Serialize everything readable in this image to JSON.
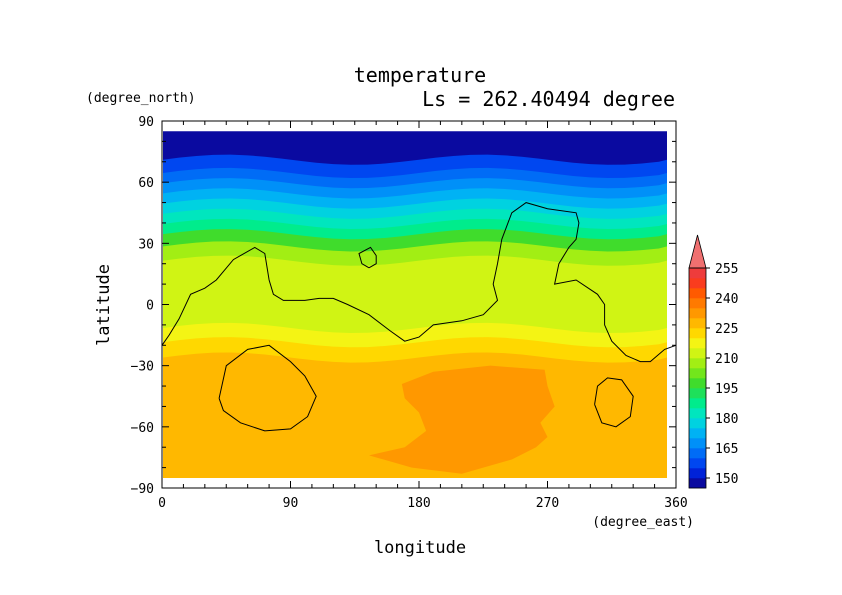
{
  "chart_data": {
    "type": "heatmap",
    "title": "temperature",
    "subtitle": "Ls = 262.40494 degree",
    "xlabel": "longitude",
    "ylabel": "latitude",
    "x_units": "(degree_east)",
    "y_units": "(degree_north)",
    "xlim": [
      0,
      360
    ],
    "ylim": [
      -90,
      90
    ],
    "x_ticks": [
      0,
      90,
      180,
      270,
      360
    ],
    "y_ticks": [
      -90,
      -60,
      -30,
      0,
      30,
      60,
      90
    ],
    "colorbar": {
      "levels": [
        145,
        150,
        155,
        160,
        165,
        170,
        175,
        180,
        185,
        190,
        195,
        200,
        205,
        210,
        215,
        220,
        225,
        230,
        235,
        240,
        245,
        250,
        255,
        260
      ],
      "tick_labels": [
        150,
        165,
        180,
        195,
        210,
        225,
        240,
        255
      ],
      "colors": [
        "#0a0aa0",
        "#0022d8",
        "#0047f0",
        "#006cf6",
        "#0090f8",
        "#00b2f4",
        "#00d2e0",
        "#00e6be",
        "#00ec8c",
        "#1ee05a",
        "#40dc2c",
        "#72e61c",
        "#a2ee14",
        "#d0f414",
        "#f4f414",
        "#ffd800",
        "#ffb800",
        "#ff9800",
        "#ff7a00",
        "#ff5a00",
        "#fa3c1e",
        "#ee3c3c",
        "#f07070"
      ]
    },
    "latitude_profile": [
      {
        "lat": 85,
        "temp": 147
      },
      {
        "lat": 75,
        "temp": 149
      },
      {
        "lat": 67,
        "temp": 156
      },
      {
        "lat": 62,
        "temp": 161
      },
      {
        "lat": 57,
        "temp": 166
      },
      {
        "lat": 52,
        "temp": 171
      },
      {
        "lat": 47,
        "temp": 176
      },
      {
        "lat": 42,
        "temp": 181
      },
      {
        "lat": 37,
        "temp": 188
      },
      {
        "lat": 32,
        "temp": 196
      },
      {
        "lat": 25,
        "temp": 205
      },
      {
        "lat": 18,
        "temp": 212
      },
      {
        "lat": 10,
        "temp": 214
      },
      {
        "lat": 0,
        "temp": 213
      },
      {
        "lat": -8,
        "temp": 214
      },
      {
        "lat": -15,
        "temp": 218
      },
      {
        "lat": -22,
        "temp": 222
      },
      {
        "lat": -30,
        "temp": 226
      },
      {
        "lat": -45,
        "temp": 227
      },
      {
        "lat": -60,
        "temp": 227
      },
      {
        "lat": -75,
        "temp": 226
      },
      {
        "lat": -85,
        "temp": 226
      }
    ],
    "warm_region": {
      "temp": 232,
      "outline": [
        [
          145,
          -74
        ],
        [
          170,
          -70
        ],
        [
          185,
          -62
        ],
        [
          180,
          -53
        ],
        [
          170,
          -46
        ],
        [
          168,
          -39
        ],
        [
          190,
          -33
        ],
        [
          230,
          -30
        ],
        [
          268,
          -32
        ],
        [
          270,
          -40
        ],
        [
          275,
          -50
        ],
        [
          265,
          -58
        ],
        [
          270,
          -65
        ],
        [
          262,
          -70
        ],
        [
          245,
          -76
        ],
        [
          210,
          -83
        ],
        [
          175,
          -80
        ]
      ]
    },
    "contours": [
      [
        [
          0,
          -20
        ],
        [
          5,
          -15
        ],
        [
          12,
          -7
        ],
        [
          20,
          5
        ],
        [
          30,
          8
        ],
        [
          38,
          12
        ],
        [
          50,
          22
        ],
        [
          65,
          28
        ],
        [
          72,
          25
        ],
        [
          75,
          12
        ],
        [
          78,
          5
        ],
        [
          85,
          2
        ],
        [
          100,
          2
        ],
        [
          110,
          3
        ],
        [
          120,
          3
        ],
        [
          130,
          0
        ],
        [
          145,
          -5
        ],
        [
          160,
          -13
        ],
        [
          170,
          -18
        ],
        [
          180,
          -16
        ],
        [
          190,
          -10
        ],
        [
          210,
          -8
        ],
        [
          225,
          -5
        ],
        [
          235,
          2
        ],
        [
          232,
          10
        ],
        [
          235,
          20
        ],
        [
          238,
          32
        ],
        [
          245,
          45
        ],
        [
          255,
          50
        ],
        [
          270,
          47
        ],
        [
          290,
          45
        ],
        [
          292,
          40
        ],
        [
          290,
          32
        ],
        [
          285,
          28
        ],
        [
          278,
          20
        ],
        [
          275,
          10
        ],
        [
          290,
          12
        ],
        [
          305,
          5
        ],
        [
          310,
          0
        ],
        [
          310,
          -10
        ],
        [
          315,
          -18
        ],
        [
          325,
          -25
        ],
        [
          335,
          -28
        ],
        [
          342,
          -28
        ],
        [
          352,
          -22
        ],
        [
          360,
          -20
        ]
      ],
      [
        [
          145,
          18
        ],
        [
          140,
          20
        ],
        [
          138,
          25
        ],
        [
          146,
          28
        ],
        [
          150,
          24
        ],
        [
          150,
          20
        ],
        [
          145,
          18
        ]
      ],
      [
        [
          40,
          -46
        ],
        [
          45,
          -30
        ],
        [
          60,
          -22
        ],
        [
          75,
          -20
        ],
        [
          90,
          -28
        ],
        [
          100,
          -35
        ],
        [
          108,
          -45
        ],
        [
          102,
          -55
        ],
        [
          90,
          -61
        ],
        [
          72,
          -62
        ],
        [
          55,
          -58
        ],
        [
          43,
          -52
        ],
        [
          40,
          -46
        ]
      ],
      [
        [
          303,
          -49
        ],
        [
          305,
          -40
        ],
        [
          312,
          -36
        ],
        [
          322,
          -37
        ],
        [
          330,
          -45
        ],
        [
          328,
          -55
        ],
        [
          318,
          -60
        ],
        [
          308,
          -58
        ],
        [
          303,
          -49
        ]
      ]
    ]
  }
}
